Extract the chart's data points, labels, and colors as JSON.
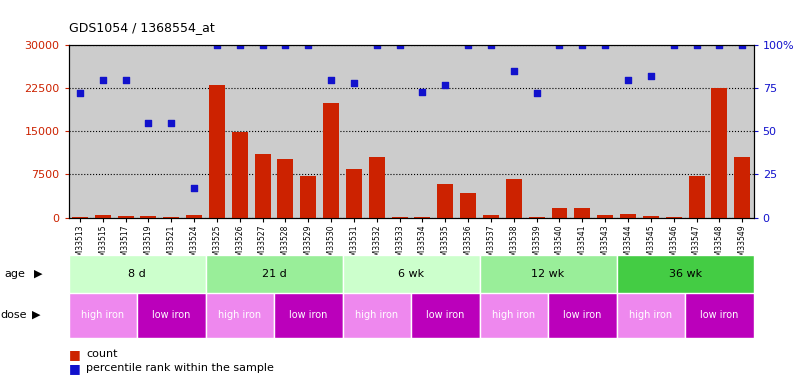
{
  "title": "GDS1054 / 1368554_at",
  "samples": [
    "GSM33513",
    "GSM33515",
    "GSM33517",
    "GSM33519",
    "GSM33521",
    "GSM33524",
    "GSM33525",
    "GSM33526",
    "GSM33527",
    "GSM33528",
    "GSM33529",
    "GSM33530",
    "GSM33531",
    "GSM33532",
    "GSM33533",
    "GSM33534",
    "GSM33535",
    "GSM33536",
    "GSM33537",
    "GSM33538",
    "GSM33539",
    "GSM33540",
    "GSM33541",
    "GSM33543",
    "GSM33544",
    "GSM33545",
    "GSM33546",
    "GSM33547",
    "GSM33548",
    "GSM33549"
  ],
  "counts": [
    150,
    350,
    250,
    300,
    150,
    350,
    23000,
    14800,
    11000,
    10200,
    7300,
    20000,
    8500,
    10500,
    100,
    100,
    5800,
    4300,
    350,
    6700,
    100,
    1600,
    1700,
    400,
    600,
    200,
    100,
    7200,
    22500,
    10500
  ],
  "percentile_ranks": [
    72,
    80,
    80,
    55,
    55,
    17,
    100,
    100,
    100,
    100,
    100,
    80,
    78,
    100,
    100,
    73,
    77,
    100,
    100,
    85,
    72,
    100,
    100,
    100,
    80,
    82,
    100,
    100,
    100,
    100
  ],
  "ylim_left": [
    0,
    30000
  ],
  "ylim_right": [
    0,
    100
  ],
  "yticks_left": [
    0,
    7500,
    15000,
    22500,
    30000
  ],
  "yticks_right": [
    0,
    25,
    50,
    75,
    100
  ],
  "ytick_labels_left": [
    "0",
    "7500",
    "15000",
    "22500",
    "30000"
  ],
  "ytick_labels_right": [
    "0",
    "25",
    "50",
    "75",
    "100%"
  ],
  "age_groups": [
    {
      "label": "8 d",
      "start": 0,
      "end": 6,
      "color": "#ccffcc"
    },
    {
      "label": "21 d",
      "start": 6,
      "end": 12,
      "color": "#99ee99"
    },
    {
      "label": "6 wk",
      "start": 12,
      "end": 18,
      "color": "#ccffcc"
    },
    {
      "label": "12 wk",
      "start": 18,
      "end": 24,
      "color": "#99ee99"
    },
    {
      "label": "36 wk",
      "start": 24,
      "end": 30,
      "color": "#44cc44"
    }
  ],
  "dose_groups": [
    {
      "label": "high iron",
      "start": 0,
      "end": 3,
      "color": "#ee88ee"
    },
    {
      "label": "low iron",
      "start": 3,
      "end": 6,
      "color": "#bb00bb"
    },
    {
      "label": "high iron",
      "start": 6,
      "end": 9,
      "color": "#ee88ee"
    },
    {
      "label": "low iron",
      "start": 9,
      "end": 12,
      "color": "#bb00bb"
    },
    {
      "label": "high iron",
      "start": 12,
      "end": 15,
      "color": "#ee88ee"
    },
    {
      "label": "low iron",
      "start": 15,
      "end": 18,
      "color": "#bb00bb"
    },
    {
      "label": "high iron",
      "start": 18,
      "end": 21,
      "color": "#ee88ee"
    },
    {
      "label": "low iron",
      "start": 21,
      "end": 24,
      "color": "#bb00bb"
    },
    {
      "label": "high iron",
      "start": 24,
      "end": 27,
      "color": "#ee88ee"
    },
    {
      "label": "low iron",
      "start": 27,
      "end": 30,
      "color": "#bb00bb"
    }
  ],
  "bar_color": "#cc2200",
  "dot_color": "#1111cc",
  "background_color": "#cccccc",
  "legend_count_color": "#cc2200",
  "legend_dot_color": "#1111cc",
  "fig_width": 8.06,
  "fig_height": 3.75,
  "dpi": 100
}
